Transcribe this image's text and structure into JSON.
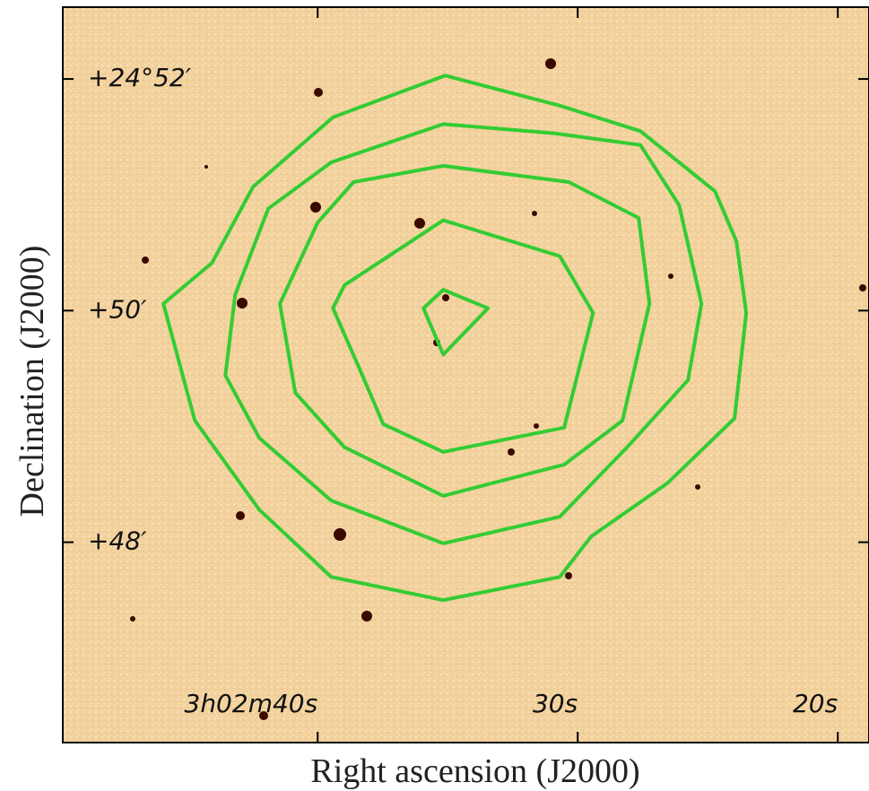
{
  "chart_data": {
    "type": "contour",
    "xlabel": "Right ascension (J2000)",
    "ylabel": "Declination (J2000)",
    "xlim": [
      49.8,
      18.8
    ],
    "ylim": [
      46.27,
      52.62
    ],
    "xticks": [
      {
        "value": 40,
        "label": "3h02m40s"
      },
      {
        "value": 30,
        "label": "30s"
      },
      {
        "value": 20,
        "label": "20s"
      }
    ],
    "yticks": [
      {
        "value": 52,
        "label": "+24°52′"
      },
      {
        "value": 50,
        "label": "+50′"
      },
      {
        "value": 48,
        "label": "+48′"
      }
    ],
    "color": "#33cc33",
    "series": [
      {
        "x": [
          35.1,
          39.41,
          42.48,
          44.07,
          45.93,
          44.72,
          42.24,
          39.48,
          35.17,
          30.69,
          29.48,
          26.55,
          23.97,
          23.52,
          23.9,
          24.72,
          27.59,
          30.69
        ],
        "y": [
          52.03,
          51.67,
          51.07,
          50.41,
          50.06,
          49.05,
          48.28,
          47.7,
          47.5,
          47.7,
          48.05,
          48.51,
          49.07,
          49.98,
          50.6,
          51.03,
          51.55,
          51.77
        ]
      },
      {
        "x": [
          35.17,
          39.48,
          41.9,
          43.17,
          43.55,
          42.24,
          39.48,
          35.17,
          30.69,
          28.1,
          25.76,
          25.24,
          26.1,
          27.59,
          30.86
        ],
        "y": [
          51.61,
          51.28,
          50.88,
          50.14,
          49.44,
          48.9,
          48.36,
          47.99,
          48.22,
          48.82,
          49.4,
          50.06,
          50.91,
          51.43,
          51.53
        ]
      },
      {
        "x": [
          35.17,
          38.62,
          40.0,
          41.45,
          40.86,
          38.97,
          35.17,
          30.52,
          28.28,
          27.24,
          27.66,
          30.34
        ],
        "y": [
          51.25,
          51.11,
          50.76,
          50.06,
          49.29,
          48.82,
          48.4,
          48.67,
          49.05,
          50.06,
          50.8,
          51.11
        ]
      },
      {
        "x": [
          35.17,
          38.97,
          39.41,
          38.28,
          37.48,
          35.17,
          30.52,
          29.41,
          30.69
        ],
        "y": [
          50.78,
          50.22,
          50.02,
          49.44,
          49.02,
          48.78,
          48.99,
          49.98,
          50.47
        ]
      },
      {
        "x": [
          35.17,
          35.93,
          35.17,
          33.45
        ],
        "y": [
          50.18,
          50.02,
          49.62,
          50.02
        ]
      }
    ]
  }
}
